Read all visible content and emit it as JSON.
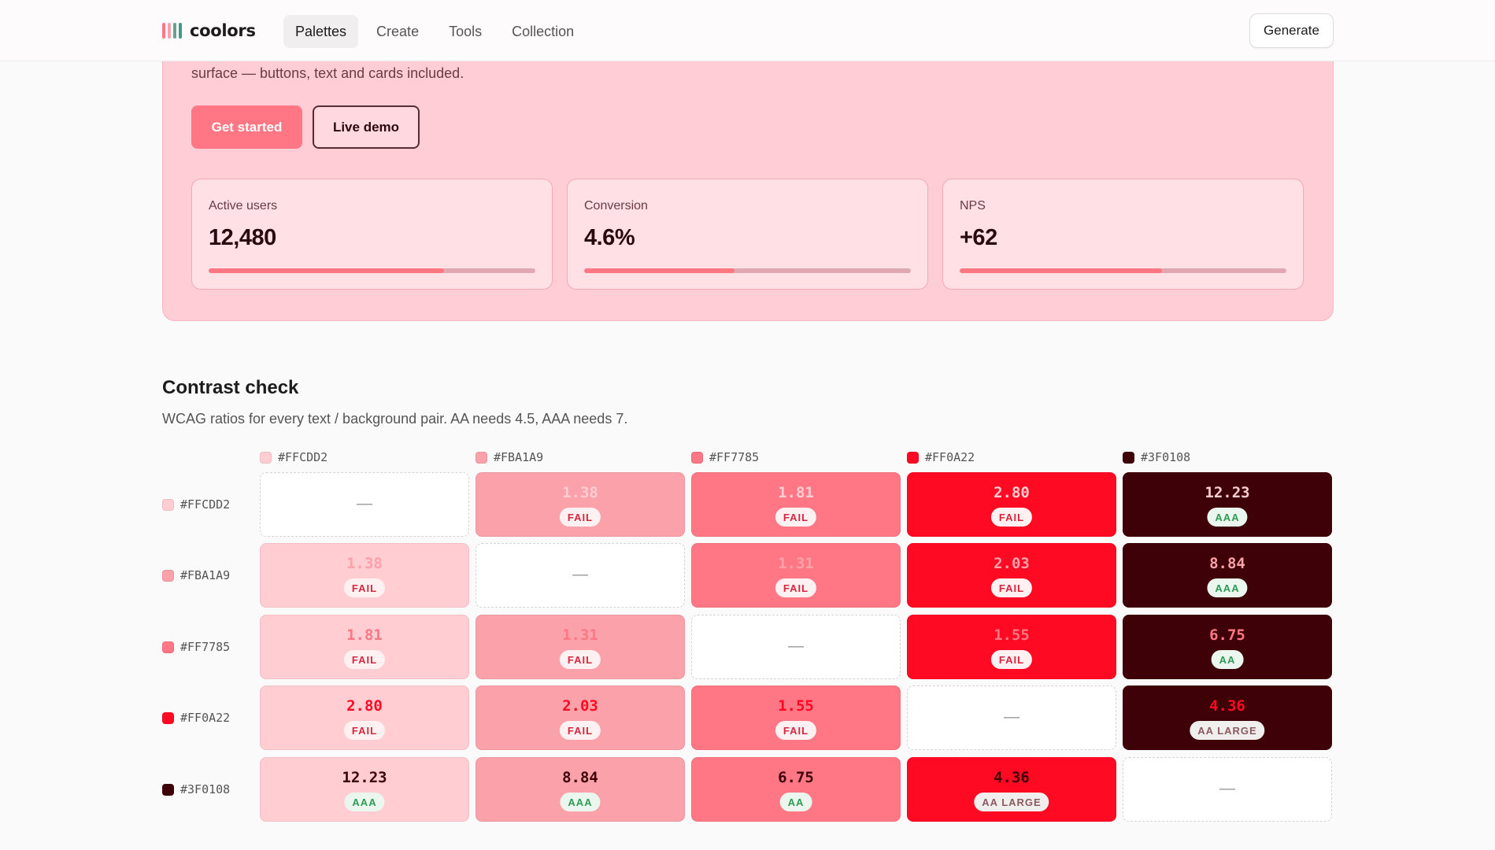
{
  "nav": {
    "brand": "coolors",
    "brand_colors": [
      "#ff7785",
      "#fba1a9",
      "#6a9e8f",
      "#3f9a86"
    ],
    "items": [
      "Palettes",
      "Create",
      "Tools",
      "Collection"
    ],
    "active": "Palettes",
    "generate_label": "Generate"
  },
  "hero": {
    "description": "surface — buttons, text and cards included.",
    "primary_button": "Get started",
    "secondary_button": "Live demo",
    "stats": [
      {
        "label": "Active users",
        "value": "12,480",
        "progress": 0.72
      },
      {
        "label": "Conversion",
        "value": "4.6%",
        "progress": 0.46
      },
      {
        "label": "NPS",
        "value": "+62",
        "progress": 0.62
      }
    ]
  },
  "contrast": {
    "title": "Contrast check",
    "subtitle": "WCAG ratios for every text / background pair. AA needs 4.5, AAA needs 7.",
    "empty_symbol": "—",
    "colors": [
      "#FFCDD2",
      "#FBA1A9",
      "#FF7785",
      "#FF0A22",
      "#3F0108"
    ],
    "matrix": [
      [
        null,
        {
          "ratio": "1.38",
          "rating": "FAIL"
        },
        {
          "ratio": "1.81",
          "rating": "FAIL"
        },
        {
          "ratio": "2.80",
          "rating": "FAIL"
        },
        {
          "ratio": "12.23",
          "rating": "AAA"
        }
      ],
      [
        {
          "ratio": "1.38",
          "rating": "FAIL"
        },
        null,
        {
          "ratio": "1.31",
          "rating": "FAIL"
        },
        {
          "ratio": "2.03",
          "rating": "FAIL"
        },
        {
          "ratio": "8.84",
          "rating": "AAA"
        }
      ],
      [
        {
          "ratio": "1.81",
          "rating": "FAIL"
        },
        {
          "ratio": "1.31",
          "rating": "FAIL"
        },
        null,
        {
          "ratio": "1.55",
          "rating": "FAIL"
        },
        {
          "ratio": "6.75",
          "rating": "AA"
        }
      ],
      [
        {
          "ratio": "2.80",
          "rating": "FAIL"
        },
        {
          "ratio": "2.03",
          "rating": "FAIL"
        },
        {
          "ratio": "1.55",
          "rating": "FAIL"
        },
        null,
        {
          "ratio": "4.36",
          "rating": "AA LARGE"
        }
      ],
      [
        {
          "ratio": "12.23",
          "rating": "AAA"
        },
        {
          "ratio": "8.84",
          "rating": "AAA"
        },
        {
          "ratio": "6.75",
          "rating": "AA"
        },
        {
          "ratio": "4.36",
          "rating": "AA LARGE"
        },
        null
      ]
    ]
  }
}
